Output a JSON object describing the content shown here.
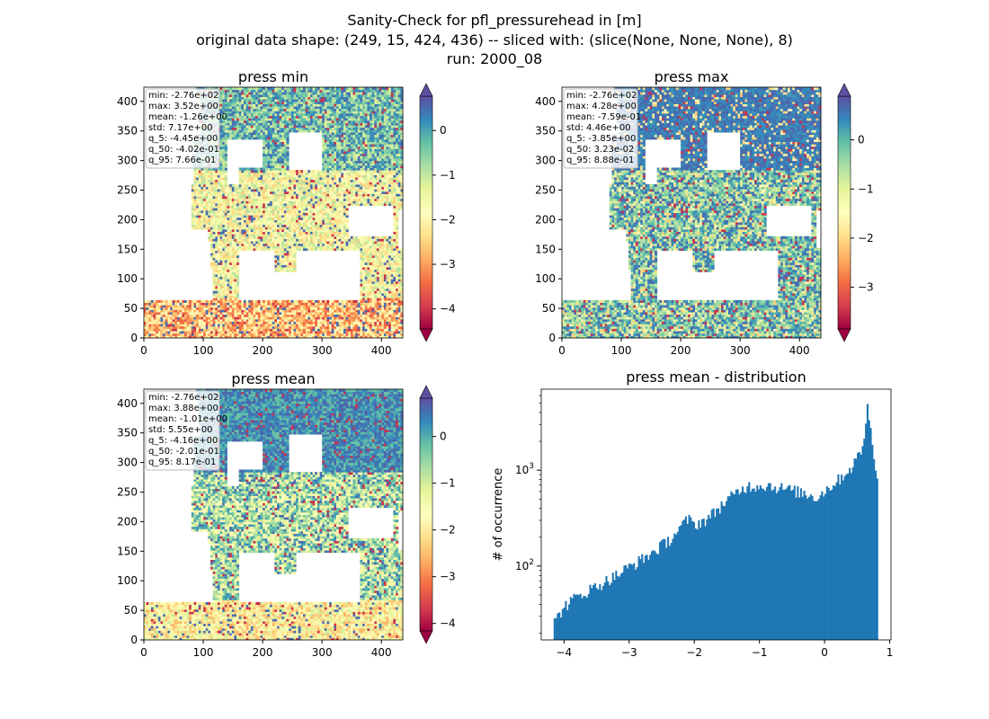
{
  "figure": {
    "title_lines": [
      "Sanity-Check for pfl_pressurehead in [m]",
      "original data shape: (249, 15, 424, 436) -- sliced with: (slice(None, None, None), 8)",
      "run: 2000_08"
    ]
  },
  "chart_data": [
    {
      "type": "heatmap",
      "title": "press min",
      "xlim": [
        0,
        436
      ],
      "ylim": [
        0,
        424
      ],
      "xticks": [
        0,
        100,
        200,
        300,
        400
      ],
      "yticks": [
        0,
        50,
        100,
        150,
        200,
        250,
        300,
        350,
        400
      ],
      "colorbar": {
        "colormap": "Spectral",
        "ticks": [
          0,
          -1,
          -2,
          -3,
          -4
        ],
        "range": [
          -4.45,
          0.77
        ],
        "extend": "both"
      },
      "stats": [
        "min: -2.76e+02",
        "max: 3.52e+00",
        "mean: -1.26e+00",
        "std: 7.17e+00",
        "q_5: -4.45e+00",
        "q_50: -4.02e-01",
        "q_95: 7.66e-01"
      ]
    },
    {
      "type": "heatmap",
      "title": "press max",
      "xlim": [
        0,
        436
      ],
      "ylim": [
        0,
        424
      ],
      "xticks": [
        0,
        100,
        200,
        300,
        400
      ],
      "yticks": [
        0,
        50,
        100,
        150,
        200,
        250,
        300,
        350,
        400
      ],
      "colorbar": {
        "colormap": "Spectral",
        "ticks": [
          0,
          -1,
          -2,
          -3
        ],
        "range": [
          -3.85,
          0.89
        ],
        "extend": "both"
      },
      "stats": [
        "min: -2.76e+02",
        "max: 4.28e+00",
        "mean: -7.59e-01",
        "std: 4.46e+00",
        "q_5: -3.85e+00",
        "q_50: 3.23e-02",
        "q_95: 8.88e-01"
      ]
    },
    {
      "type": "heatmap",
      "title": "press mean",
      "xlim": [
        0,
        436
      ],
      "ylim": [
        0,
        424
      ],
      "xticks": [
        0,
        100,
        200,
        300,
        400
      ],
      "yticks": [
        0,
        50,
        100,
        150,
        200,
        250,
        300,
        350,
        400
      ],
      "colorbar": {
        "colormap": "Spectral",
        "ticks": [
          0,
          -1,
          -2,
          -3,
          -4
        ],
        "range": [
          -4.16,
          0.82
        ],
        "extend": "both"
      },
      "stats": [
        "min: -2.76e+02",
        "max: 3.88e+00",
        "mean: -1.01e+00",
        "std: 5.55e+00",
        "q_5: -4.16e+00",
        "q_50: -2.01e-01",
        "q_95: 8.17e-01"
      ]
    },
    {
      "type": "bar",
      "title": "press mean - distribution",
      "xlabel": "",
      "ylabel": "# of occurrence",
      "yscale": "log",
      "xlim": [
        -4.35,
        1.02
      ],
      "ylim": [
        17,
        7000
      ],
      "xticks": [
        -4,
        -3,
        -2,
        -1,
        0,
        1
      ],
      "yticks": [
        {
          "value": 100,
          "label": "10^2"
        },
        {
          "value": 1000,
          "label": "10^3"
        }
      ],
      "bar_color": "#1f77b4",
      "bins": {
        "start": -4.16,
        "end": 0.82,
        "count": 200
      },
      "profile": [
        [
          -4.16,
          25
        ],
        [
          -4.0,
          38
        ],
        [
          -3.8,
          48
        ],
        [
          -3.5,
          62
        ],
        [
          -3.2,
          80
        ],
        [
          -3.0,
          98
        ],
        [
          -2.8,
          118
        ],
        [
          -2.6,
          145
        ],
        [
          -2.4,
          185
        ],
        [
          -2.3,
          215
        ],
        [
          -2.1,
          310
        ],
        [
          -2.0,
          270
        ],
        [
          -1.8,
          310
        ],
        [
          -1.6,
          420
        ],
        [
          -1.4,
          550
        ],
        [
          -1.2,
          680
        ],
        [
          -0.9,
          700
        ],
        [
          -0.6,
          640
        ],
        [
          -0.3,
          570
        ],
        [
          -0.1,
          520
        ],
        [
          0.0,
          610
        ],
        [
          0.2,
          780
        ],
        [
          0.4,
          1050
        ],
        [
          0.55,
          1500
        ],
        [
          0.62,
          2500
        ],
        [
          0.66,
          4600
        ],
        [
          0.7,
          2800
        ],
        [
          0.75,
          1600
        ],
        [
          0.82,
          800
        ]
      ]
    }
  ]
}
